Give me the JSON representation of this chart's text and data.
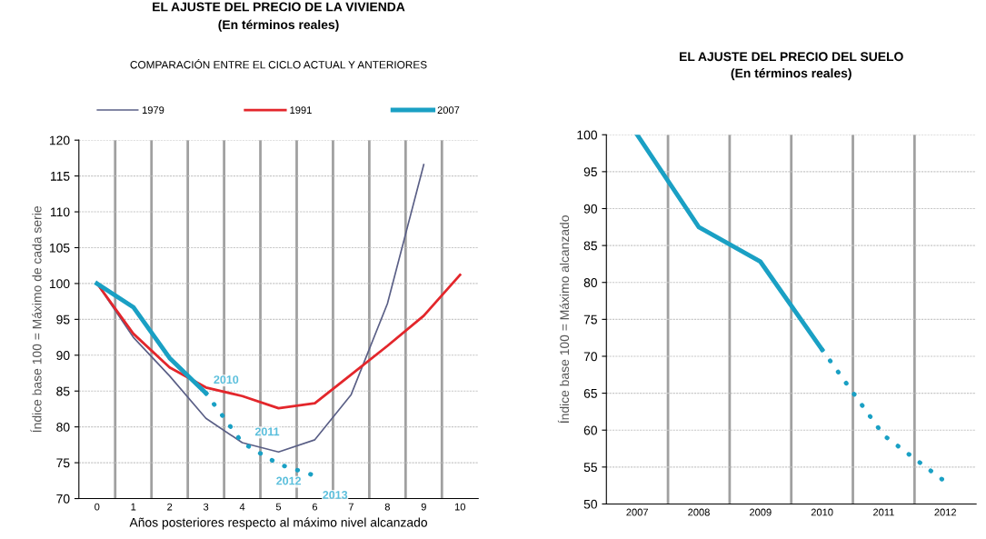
{
  "chart_data": [
    {
      "type": "line",
      "title": "EL AJUSTE DEL PRECIO DE LA VIVIENDA",
      "subtitle": "(En términos reales)",
      "annotations": [
        "COMPARACIÓN ENTRE EL CICLO ACTUAL Y ANTERIORES",
        {
          "text": "2010",
          "x": "3",
          "y": 84.7
        },
        {
          "text": "2011",
          "x": "4",
          "y": 77.8
        },
        {
          "text": "2012",
          "x": "5",
          "y": 74.8
        },
        {
          "text": "2013",
          "x": "6",
          "y": 73.2
        }
      ],
      "xlabel": "Años posteriores respecto al máximo nivel alcanzado",
      "ylabel": "Índice base 100 = Máximo de cada serie",
      "categories": [
        "0",
        "1",
        "2",
        "3",
        "4",
        "5",
        "6",
        "7",
        "8",
        "9",
        "10"
      ],
      "series": [
        {
          "name": "1979",
          "color": "#5a5f86",
          "values": [
            100,
            92.5,
            87.1,
            81.2,
            77.8,
            76.5,
            78.2,
            84.5,
            97.2,
            116.6,
            null
          ]
        },
        {
          "name": "1991",
          "color": "#e3262b",
          "values": [
            100,
            93,
            88.3,
            85.5,
            84.3,
            82.6,
            83.3,
            87.3,
            91.3,
            95.5,
            101.2
          ]
        },
        {
          "name": "2007",
          "color": "#1aa0c4",
          "values": [
            100,
            96.7,
            89.6,
            84.7,
            null,
            null,
            null,
            null,
            null,
            null,
            null
          ]
        },
        {
          "color": "#1aa0c4",
          "line_style": "dotted",
          "values": [
            null,
            null,
            null,
            84.7,
            77.8,
            74.8,
            73.2,
            null,
            null,
            null,
            null
          ]
        }
      ],
      "ylim": [
        70,
        120
      ],
      "yticks": [
        70,
        75,
        80,
        85,
        90,
        95,
        100,
        105,
        110,
        115,
        120
      ],
      "grid": true,
      "legend": "top",
      "marker": "none"
    },
    {
      "type": "line",
      "title": "EL AJUSTE DEL PRECIO DEL SUELO",
      "subtitle": "(En términos reales)",
      "ylabel": "Índice base 100 = Máximo alcanzado",
      "categories": [
        "2007",
        "2008",
        "2009",
        "2010",
        "2011",
        "2012"
      ],
      "series": [
        {
          "color": "#1aa0c4",
          "values": [
            100,
            87.5,
            82.8,
            70.9,
            null,
            null
          ]
        },
        {
          "color": "#1aa0c4",
          "line_style": "dotted",
          "values": [
            null,
            null,
            null,
            70.9,
            59.3,
            53.0
          ]
        }
      ],
      "ylim": [
        50,
        100
      ],
      "yticks": [
        50,
        55,
        60,
        65,
        70,
        75,
        80,
        85,
        90,
        95,
        100
      ],
      "grid": true,
      "marker": "none"
    }
  ]
}
